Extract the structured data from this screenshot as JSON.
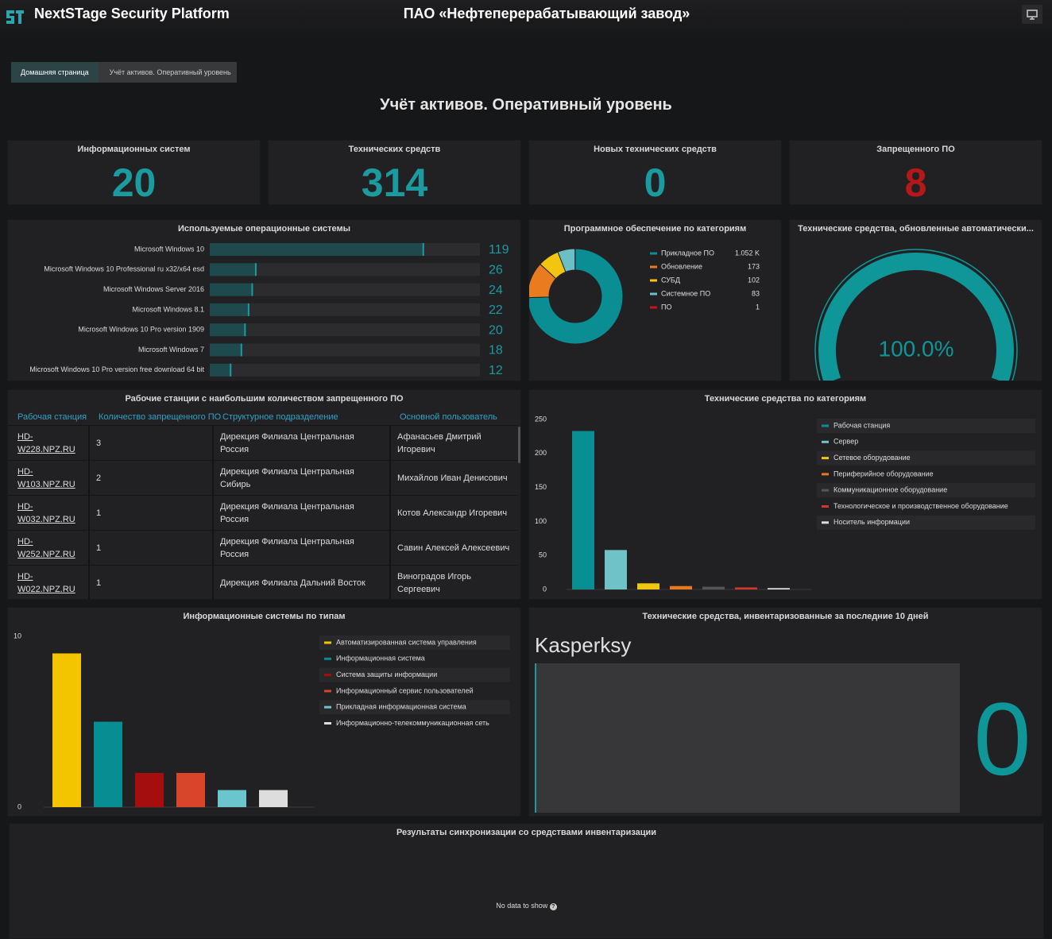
{
  "header": {
    "title": "NextSTage Security Platform",
    "organization": "ПАО «Нефтеперерабатывающий завод»"
  },
  "breadcrumb": [
    "Домашняя страница",
    "Учёт активов. Оперативный уровень"
  ],
  "page_title": "Учёт активов. Оперативный уровень",
  "stats": [
    {
      "label": "Информационных систем",
      "value": 20,
      "color": "#1b9aa0"
    },
    {
      "label": "Технических средств",
      "value": 314,
      "color": "#1b9aa0"
    },
    {
      "label": "Новых технических средств",
      "value": 0,
      "color": "#1b9aa0"
    },
    {
      "label": "Запрещенного ПО",
      "value": 8,
      "color": "#b51818"
    }
  ],
  "os_chart": {
    "type": "bar",
    "title": "Используемые операционные системы",
    "categories": [
      "Microsoft Windows 10",
      "Microsoft Windows 10 Professional ru x32/x64 esd",
      "Microsoft Windows Server 2016",
      "Microsoft Windows 8.1",
      "Microsoft Windows 10 Pro version 1909",
      "Microsoft Windows 7",
      "Microsoft Windows 10 Pro version free download 64 bit"
    ],
    "values": [
      119,
      26,
      24,
      22,
      20,
      18,
      12
    ],
    "xlim": [
      0,
      150
    ],
    "color": "#1b9aa0"
  },
  "software_chart": {
    "type": "donut",
    "title": "Программное обеспечение по категориям",
    "categories": [
      "Прикладное ПО",
      "Обновление",
      "СУБД",
      "Системное ПО",
      "ПО"
    ],
    "values": [
      1052,
      173,
      102,
      83,
      1
    ],
    "value_labels": [
      "1.052 K",
      "173",
      "102",
      "83",
      "1"
    ],
    "colors": [
      "#0a8e94",
      "#ea7b1e",
      "#f2c511",
      "#6bc0c6",
      "#c41414"
    ]
  },
  "gauge": {
    "type": "gauge",
    "title": "Технические средства, обновленные автоматически...",
    "value": 100,
    "value_label": "100.0%",
    "range": [
      0,
      100
    ],
    "color": "#0f9699"
  },
  "workstations_table": {
    "title": "Рабочие станции с наибольшим количеством запрещенного ПО",
    "columns": [
      "Рабочая станция",
      "Количество запрещенного ПО",
      "Структурное подразделение",
      "Основной пользователь"
    ],
    "rows": [
      [
        "HD-W228.NPZ.RU",
        3,
        "Дирекция Филиала Центральная Россия",
        "Афанасьев Дмитрий Игоревич"
      ],
      [
        "HD-W103.NPZ.RU",
        2,
        "Дирекция Филиала Центральная Сибирь",
        "Михайлов Иван Денисович"
      ],
      [
        "HD-W032.NPZ.RU",
        1,
        "Дирекция Филиала Центральная Россия",
        "Котов Александр Игоревич"
      ],
      [
        "HD-W252.NPZ.RU",
        1,
        "Дирекция Филиала Центральная Россия",
        "Савин Алексей Алексеевич"
      ],
      [
        "HD-W022.NPZ.RU",
        1,
        "Дирекция Филиала Дальний Восток",
        "Виноградов Игорь Сергеевич"
      ]
    ]
  },
  "tech_chart": {
    "type": "bar",
    "title": "Технические средства по категориям",
    "categories": [
      "Рабочая станция",
      "Сервер",
      "Сетевое оборудование",
      "Периферийное оборудование",
      "Коммуникационное оборудование",
      "Технологическое и производственное оборудование",
      "Носитель информации"
    ],
    "values": [
      233,
      58,
      9,
      5,
      4,
      3,
      2
    ],
    "colors": [
      "#088f94",
      "#6fc3c8",
      "#f2c511",
      "#e8791c",
      "#555555",
      "#d0392a",
      "#dddddd"
    ],
    "ylim": [
      0,
      250
    ],
    "yticks": [
      0,
      50,
      100,
      150,
      200,
      250
    ],
    "grid": false
  },
  "is_chart": {
    "type": "bar",
    "title": "Информационные системы по типам",
    "categories": [
      "Автоматизированная система управления",
      "Информационная система",
      "Система защиты информации",
      "Информационный сервис пользователей",
      "Прикладная информационная система",
      "Информационно-телекоммуникационная сеть"
    ],
    "values": [
      9,
      5,
      2,
      2,
      1,
      1
    ],
    "colors": [
      "#f5c400",
      "#068e93",
      "#a50e0e",
      "#d9452b",
      "#6bc5cc",
      "#dddddd"
    ],
    "ylim": [
      0,
      10
    ],
    "yticks": [
      0,
      10
    ],
    "grid": false
  },
  "inventory": {
    "title": "Технические средства, инвентаризованные за последние 10 дней",
    "source": "Kasperksy",
    "value": 0
  },
  "sync": {
    "title": "Результаты синхронизации со средствами инвентаризации",
    "message": "No data to show"
  }
}
